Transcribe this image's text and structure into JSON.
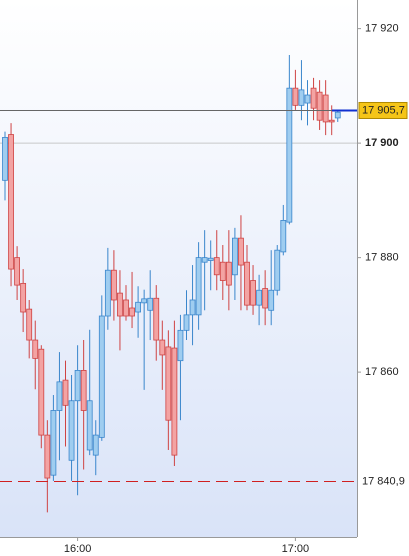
{
  "chart_data": {
    "type": "candlestick",
    "categories": [
      null,
      null,
      null,
      null,
      null,
      null,
      null,
      null,
      null,
      null,
      null,
      null,
      "16:00",
      null,
      null,
      null,
      null,
      null,
      null,
      null,
      null,
      null,
      null,
      null,
      null,
      null,
      null,
      null,
      null,
      null,
      null,
      null,
      null,
      null,
      null,
      null,
      null,
      null,
      null,
      null,
      null,
      null,
      null,
      null,
      null,
      null,
      null,
      null,
      "17:00",
      null,
      null,
      null,
      null,
      null,
      null,
      null
    ],
    "open": [
      17893.5,
      17901.5,
      17880,
      17875.5,
      17871,
      17865.6,
      17864,
      17849,
      17842,
      17853.3,
      17858.6,
      17844.6,
      17855,
      17860.3,
      17846.4,
      17845.5,
      17848.6,
      17869.8,
      17877.8,
      17873.8,
      17872.6,
      17871.2,
      17870.5,
      17872.1,
      17870.8,
      17872.9,
      17865.6,
      17864.4,
      17864.2,
      17862,
      17867.3,
      17870,
      17870,
      17879.2,
      17879.5,
      17880,
      17879.2,
      17879.2,
      17877,
      17883.4,
      17879.2,
      17876,
      17871.7,
      17874.6,
      17870.8,
      17874.3,
      17881,
      17886.2,
      17909.6,
      17906.6,
      17907,
      17909.6,
      17908.9,
      17908.4,
      17904,
      17904.4
    ],
    "high": [
      17902,
      17903.5,
      17882,
      17878,
      17872.6,
      17869,
      17864.7,
      17851.6,
      17856,
      17863.5,
      17862,
      17859.5,
      17864.7,
      17865.6,
      17867.4,
      17851.6,
      17873.4,
      17881.7,
      17881.3,
      17877.8,
      17875.2,
      17877.5,
      17875,
      17874.4,
      17877.8,
      17875.2,
      17869,
      17867.3,
      17869,
      17870,
      17874.3,
      17878.7,
      17882.7,
      17884.8,
      17883,
      17884.8,
      17882.2,
      17884.8,
      17885.2,
      17887.4,
      17882.2,
      17878.7,
      17877,
      17877.8,
      17881.3,
      17882.2,
      17889.2,
      17915.4,
      17912.8,
      17914.5,
      17911,
      17911.4,
      17911,
      17911,
      17906.6,
      17905.8
    ],
    "low": [
      17890,
      17875,
      17872.6,
      17867,
      17862.4,
      17857,
      17846.7,
      17835.5,
      17841,
      17844.6,
      17847,
      17841,
      17838.5,
      17843,
      17845.5,
      17842,
      17848,
      17867.4,
      17869,
      17863.8,
      17869,
      17867.7,
      17866,
      17856.9,
      17865.6,
      17862,
      17856.9,
      17846.4,
      17843.6,
      17851.6,
      17865.6,
      17864.7,
      17867.4,
      17870.8,
      17874.3,
      17874.3,
      17872.6,
      17870.8,
      17872.6,
      17870.8,
      17870.8,
      17870,
      17868.2,
      17868.2,
      17868.2,
      17873.4,
      17880.4,
      17885.8,
      17905.8,
      17904,
      17903.1,
      17904,
      17902.3,
      17901.4,
      17901.4,
      17903.7
    ],
    "close": [
      17901,
      17878,
      17875.2,
      17870.5,
      17865.6,
      17862.4,
      17849,
      17841.5,
      17853.3,
      17858.3,
      17854.2,
      17855,
      17860.3,
      17853.3,
      17855,
      17849,
      17869.8,
      17877.8,
      17872.6,
      17869.8,
      17869.8,
      17869.8,
      17872.2,
      17872.8,
      17872.9,
      17865.6,
      17863,
      17851.6,
      17845.5,
      17867.3,
      17870,
      17872.6,
      17880,
      17880,
      17879.9,
      17877,
      17876,
      17875.2,
      17883.4,
      17878.7,
      17871.7,
      17871.7,
      17874.3,
      17871.2,
      17874.3,
      17881.3,
      17886.5,
      17909.6,
      17906.6,
      17909.3,
      17908.4,
      17906.1,
      17904,
      17903.7,
      17903.7,
      17905.4
    ],
    "up_color": "#9fcdf0",
    "up_edge": "#3a86cc",
    "down_color": "#f3a3a3",
    "down_edge": "#cf4343",
    "ylim": [
      17831.2,
      17925
    ],
    "yticks": [
      {
        "value": 17860,
        "label": "17 860"
      },
      {
        "value": 17880,
        "label": "17 880"
      },
      {
        "value": 17900,
        "label": "17 900",
        "bold": true
      },
      {
        "value": 17920,
        "label": "17 920"
      }
    ],
    "price_lines": [
      {
        "value": 17905.7,
        "label": "17 905,7",
        "color": "#666666",
        "box": "#f5c518",
        "text_color": "#000000",
        "dashed": false
      },
      {
        "value": 17840.9,
        "label": "17 840,9",
        "color": "#d02020",
        "box": "#ffffff",
        "text_color": "#d02020",
        "dashed": true
      }
    ]
  }
}
